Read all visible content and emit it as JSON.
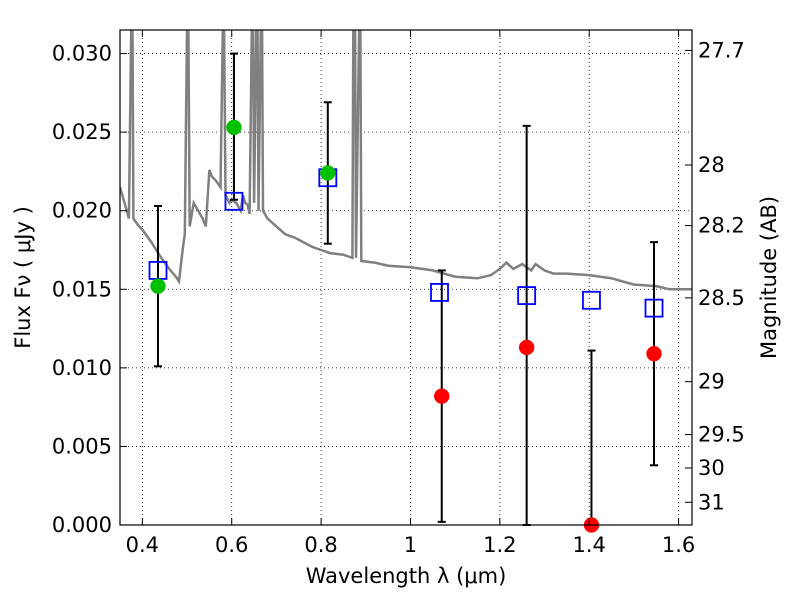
{
  "chart_data": {
    "type": "scatter",
    "xlabel": "Wavelength  λ (μm)",
    "ylabel": "Flux  Fν  ( μJy )",
    "ylabel_right": "Magnitude (AB)",
    "xlim": [
      0.35,
      1.63
    ],
    "ylim": [
      0.0,
      0.0315
    ],
    "grid": true,
    "x_ticks": [
      "0.4",
      "0.6",
      "0.8",
      "1",
      "1.2",
      "1.4",
      "1.6"
    ],
    "x_tick_values": [
      0.4,
      0.6,
      0.8,
      1.0,
      1.2,
      1.4,
      1.6
    ],
    "y_ticks": [
      "0.000",
      "0.005",
      "0.010",
      "0.015",
      "0.020",
      "0.025",
      "0.030"
    ],
    "y_tick_values": [
      0.0,
      0.005,
      0.01,
      0.015,
      0.02,
      0.025,
      0.03
    ],
    "right_ticks": [
      {
        "label": "27.7",
        "mag": 27.7
      },
      {
        "label": "28",
        "mag": 28.0
      },
      {
        "label": "28.2",
        "mag": 28.2
      },
      {
        "label": "28.5",
        "mag": 28.5
      },
      {
        "label": "29",
        "mag": 29.0
      },
      {
        "label": "29.5",
        "mag": 29.5
      },
      {
        "label": "30",
        "mag": 30.0
      },
      {
        "label": "31",
        "mag": 31.0
      }
    ],
    "model_spectrum": {
      "color": "#808080",
      "points": [
        [
          0.35,
          0.0215
        ],
        [
          0.36,
          0.0205
        ],
        [
          0.37,
          0.0195
        ],
        [
          0.375,
          0.0315
        ],
        [
          0.378,
          0.0315
        ],
        [
          0.38,
          0.0195
        ],
        [
          0.39,
          0.0191
        ],
        [
          0.4,
          0.0188
        ],
        [
          0.42,
          0.018
        ],
        [
          0.44,
          0.0171
        ],
        [
          0.46,
          0.0163
        ],
        [
          0.475,
          0.0158
        ],
        [
          0.482,
          0.0155
        ],
        [
          0.49,
          0.0175
        ],
        [
          0.495,
          0.0185
        ],
        [
          0.5,
          0.0315
        ],
        [
          0.503,
          0.0315
        ],
        [
          0.506,
          0.019
        ],
        [
          0.515,
          0.0205
        ],
        [
          0.525,
          0.02
        ],
        [
          0.535,
          0.0195
        ],
        [
          0.542,
          0.019
        ],
        [
          0.55,
          0.0226
        ],
        [
          0.555,
          0.0222
        ],
        [
          0.565,
          0.0219
        ],
        [
          0.575,
          0.0215
        ],
        [
          0.58,
          0.0315
        ],
        [
          0.583,
          0.0315
        ],
        [
          0.586,
          0.021
        ],
        [
          0.595,
          0.0205
        ],
        [
          0.6,
          0.0207
        ],
        [
          0.61,
          0.0205
        ],
        [
          0.62,
          0.02
        ],
        [
          0.625,
          0.021
        ],
        [
          0.63,
          0.0205
        ],
        [
          0.635,
          0.0204
        ],
        [
          0.64,
          0.0198
        ],
        [
          0.645,
          0.0315
        ],
        [
          0.648,
          0.0315
        ],
        [
          0.65,
          0.0205
        ],
        [
          0.655,
          0.0315
        ],
        [
          0.658,
          0.0315
        ],
        [
          0.66,
          0.02
        ],
        [
          0.665,
          0.0315
        ],
        [
          0.668,
          0.0315
        ],
        [
          0.67,
          0.02
        ],
        [
          0.68,
          0.0195
        ],
        [
          0.7,
          0.019
        ],
        [
          0.72,
          0.0185
        ],
        [
          0.74,
          0.0183
        ],
        [
          0.76,
          0.018
        ],
        [
          0.78,
          0.0177
        ],
        [
          0.8,
          0.0175
        ],
        [
          0.82,
          0.0173
        ],
        [
          0.85,
          0.0172
        ],
        [
          0.87,
          0.017
        ],
        [
          0.872,
          0.0315
        ],
        [
          0.876,
          0.0315
        ],
        [
          0.878,
          0.017
        ],
        [
          0.885,
          0.0315
        ],
        [
          0.888,
          0.0315
        ],
        [
          0.89,
          0.0168
        ],
        [
          0.92,
          0.0167
        ],
        [
          0.95,
          0.0165
        ],
        [
          1.0,
          0.0164
        ],
        [
          1.05,
          0.0162
        ],
        [
          1.1,
          0.0158
        ],
        [
          1.15,
          0.0157
        ],
        [
          1.18,
          0.0159
        ],
        [
          1.2,
          0.0163
        ],
        [
          1.215,
          0.0167
        ],
        [
          1.23,
          0.0163
        ],
        [
          1.25,
          0.0166
        ],
        [
          1.27,
          0.0162
        ],
        [
          1.28,
          0.0166
        ],
        [
          1.3,
          0.0162
        ],
        [
          1.32,
          0.016
        ],
        [
          1.35,
          0.016
        ],
        [
          1.4,
          0.0159
        ],
        [
          1.45,
          0.0157
        ],
        [
          1.5,
          0.0153
        ],
        [
          1.55,
          0.0152
        ],
        [
          1.58,
          0.015
        ],
        [
          1.63,
          0.015
        ]
      ]
    },
    "series": [
      {
        "marker": "open-square",
        "color": "#0000ff",
        "x": [
          0.435,
          0.605,
          0.815,
          1.065,
          1.26,
          1.405,
          1.545
        ],
        "y": [
          0.0162,
          0.0206,
          0.0221,
          0.0148,
          0.0146,
          0.0143,
          0.0138
        ]
      },
      {
        "marker": "filled-circle",
        "color": "#00c000",
        "x": [
          0.435,
          0.605,
          0.815
        ],
        "y": [
          0.0152,
          0.0253,
          0.0224
        ]
      },
      {
        "marker": "filled-circle",
        "color": "#ff0000",
        "x": [
          1.07,
          1.26,
          1.405,
          1.545
        ],
        "y": [
          0.0082,
          0.0113,
          0.0,
          0.0109
        ]
      }
    ],
    "error_bars": [
      {
        "x": 0.435,
        "low": 0.0101,
        "high": 0.0203
      },
      {
        "x": 0.605,
        "low": 0.0207,
        "high": 0.03
      },
      {
        "x": 0.815,
        "low": 0.0179,
        "high": 0.0269
      },
      {
        "x": 1.07,
        "low": 0.0002,
        "high": 0.0162
      },
      {
        "x": 1.26,
        "low": 0.0,
        "high": 0.0254
      },
      {
        "x": 1.405,
        "low": 0.0,
        "high": 0.0111
      },
      {
        "x": 1.545,
        "low": 0.0038,
        "high": 0.018
      }
    ]
  }
}
